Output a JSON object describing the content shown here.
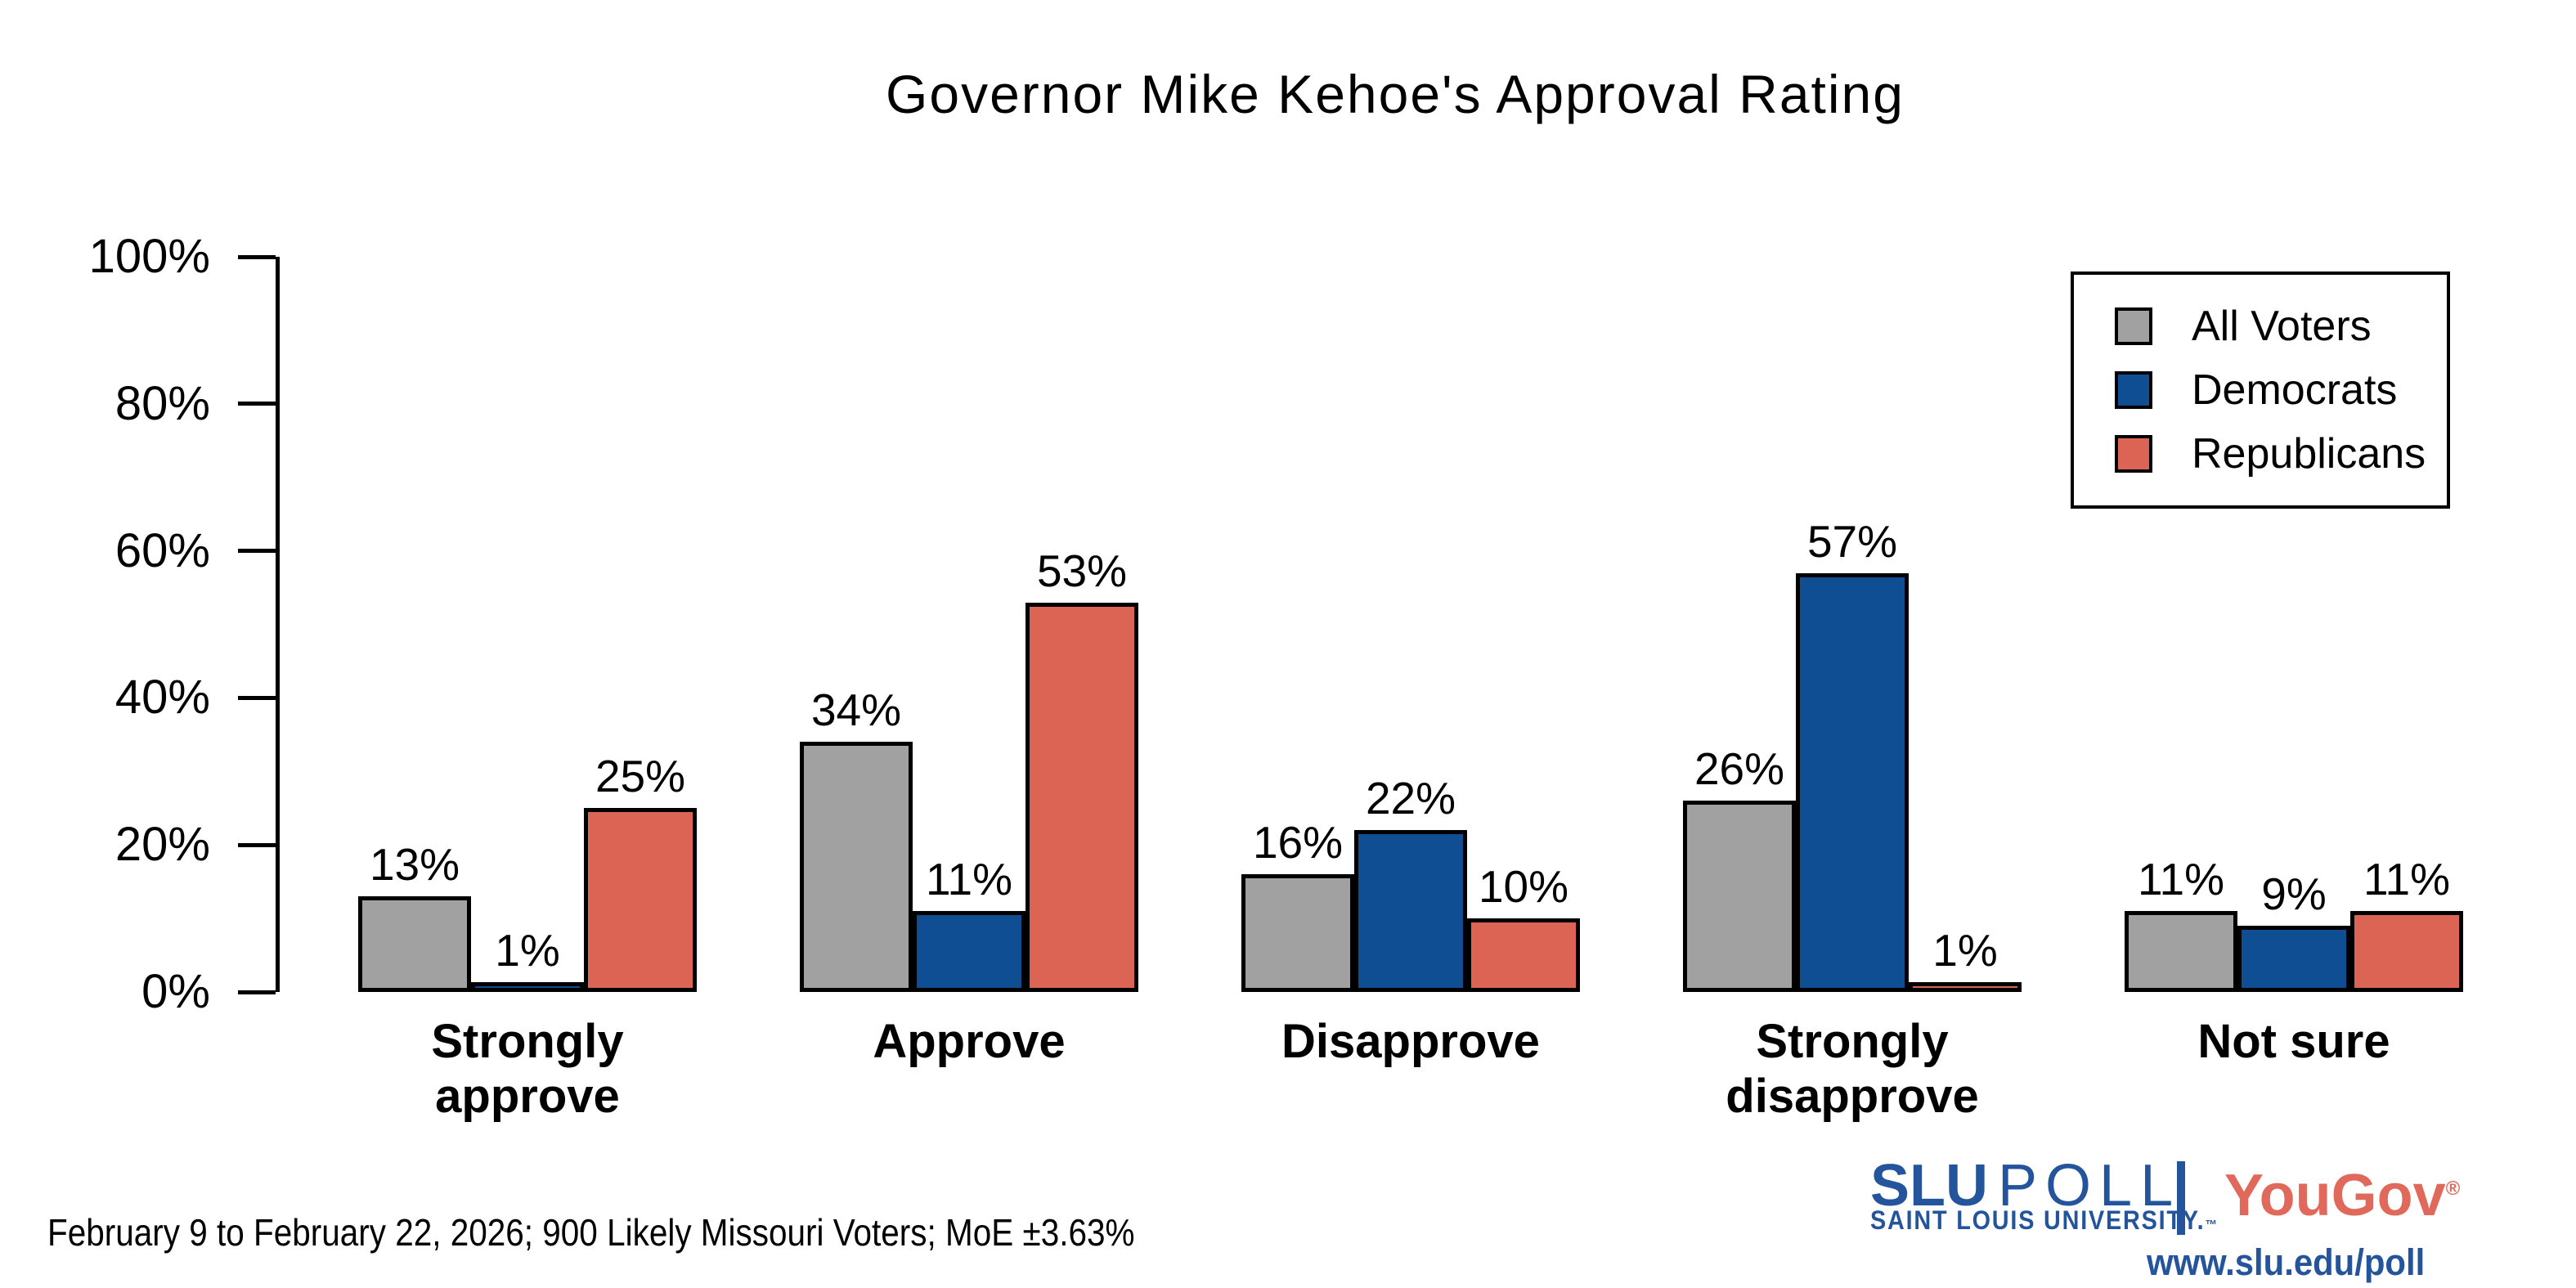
{
  "chart_data": {
    "type": "bar",
    "title": "Governor Mike Kehoe's Approval Rating",
    "categories": [
      "Strongly approve",
      "Approve",
      "Disapprove",
      "Strongly disapprove",
      "Not sure"
    ],
    "category_display": {
      "Strongly approve": "Strongly\napprove",
      "Strongly disapprove": "Strongly\ndisapprove"
    },
    "series": [
      {
        "name": "All Voters",
        "color": "#a1a1a1",
        "values": [
          13,
          34,
          16,
          26,
          11
        ]
      },
      {
        "name": "Democrats",
        "color": "#104e94",
        "values": [
          1,
          11,
          22,
          57,
          9
        ]
      },
      {
        "name": "Republicans",
        "color": "#dc6455",
        "values": [
          25,
          53,
          10,
          1,
          11
        ]
      }
    ],
    "value_suffix": "%",
    "xlabel": "",
    "ylabel": "",
    "ylim": [
      0,
      100
    ],
    "yticks": [
      "0%",
      "20%",
      "40%",
      "60%",
      "80%",
      "100%"
    ],
    "grid": false,
    "legend_position": "top-right",
    "bar_border_color": "#000000"
  },
  "footer": {
    "note": "February 9 to February 22, 2026; 900 Likely Missouri Voters; MoE ±3.63%"
  },
  "branding": {
    "slu": "SLU",
    "poll": "POLL",
    "slu_sub": "SAINT LOUIS UNIVERSITY.",
    "slu_tm": "™",
    "yougov": "YouGov",
    "registered": "®",
    "url": "www.slu.edu/poll",
    "slu_blue": "#24549b",
    "yougov_red": "#e0695c"
  }
}
